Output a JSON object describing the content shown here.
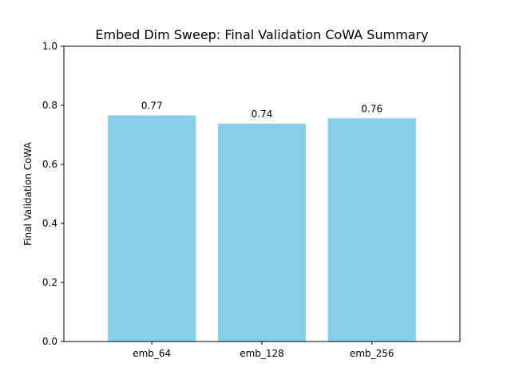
{
  "chart_data": {
    "type": "bar",
    "title": "Embed Dim Sweep: Final Validation CoWA Summary",
    "xlabel": "",
    "ylabel": "Final Validation CoWA",
    "categories": [
      "emb_64",
      "emb_128",
      "emb_256"
    ],
    "values": [
      0.766,
      0.738,
      0.756
    ],
    "value_labels": [
      "0.77",
      "0.74",
      "0.76"
    ],
    "ylim": [
      0,
      1.0
    ],
    "yticks": [
      0.0,
      0.2,
      0.4,
      0.6,
      0.8,
      1.0
    ],
    "ytick_labels": [
      "0.0",
      "0.2",
      "0.4",
      "0.6",
      "0.8",
      "1.0"
    ],
    "bar_color": "#87CEEB",
    "grid": false,
    "legend": "none"
  }
}
